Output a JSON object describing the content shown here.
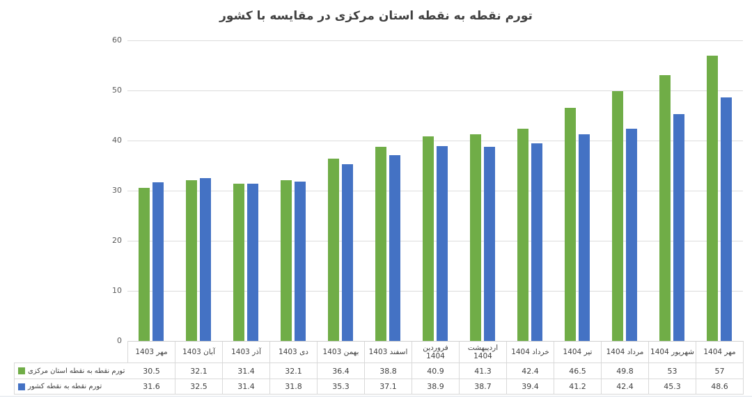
{
  "chart_data": {
    "type": "bar",
    "title": "تورم نقطه به نقطه استان مرکزی در مقایسه با کشور",
    "categories": [
      "مهر 1403",
      "آبان 1403",
      "آذر 1403",
      "دی 1403",
      "بهمن 1403",
      "اسفند 1403",
      "فروردین 1404",
      "اردیبهشت 1404",
      "خرداد 1404",
      "تیر 1404",
      "مرداد 1404",
      "شهریور 1404",
      "مهر 1404"
    ],
    "series": [
      {
        "name": "تورم نقطه به نقطه استان مرکزی",
        "color": "#70AD47",
        "values": [
          30.5,
          32.1,
          31.4,
          32.1,
          36.4,
          38.8,
          40.9,
          41.3,
          42.4,
          46.5,
          49.8,
          53,
          57
        ]
      },
      {
        "name": "تورم نقطه به نقطه کشور",
        "color": "#4472C4",
        "values": [
          31.6,
          32.5,
          31.4,
          31.8,
          35.3,
          37.1,
          38.9,
          38.7,
          39.4,
          41.2,
          42.4,
          45.3,
          48.6
        ]
      }
    ],
    "ylim": [
      0,
      60
    ],
    "yticks": [
      0,
      10,
      20,
      30,
      40,
      50,
      60
    ],
    "grid": true,
    "legend_position": "data-table-left",
    "data_table": true
  }
}
